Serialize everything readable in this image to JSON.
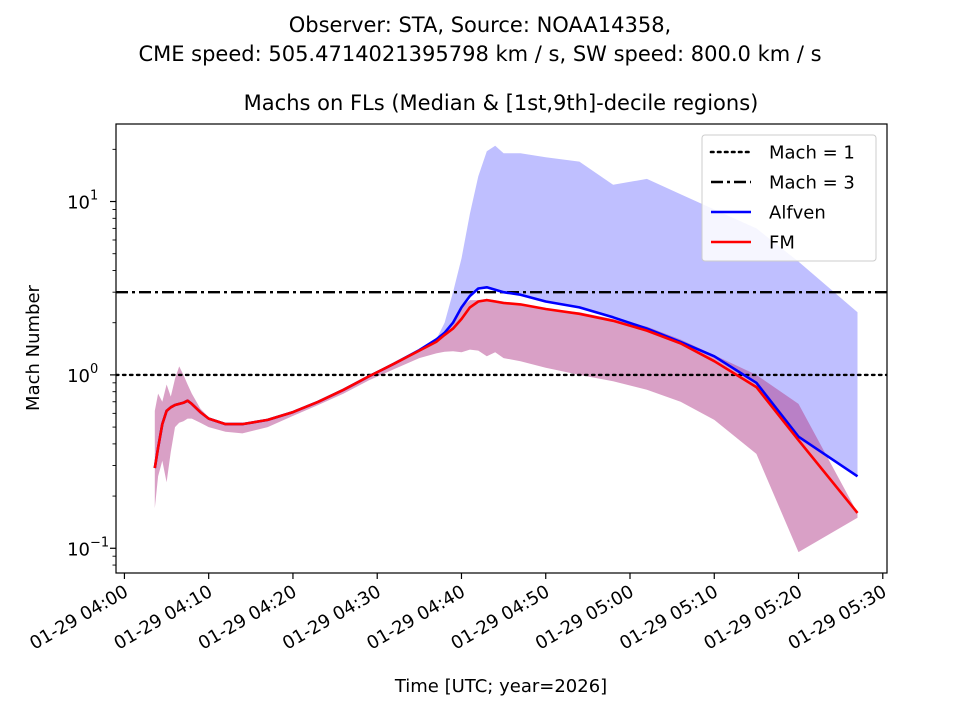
{
  "chart_data": {
    "type": "line",
    "suptitle_line1": "Observer: STA, Source: NOAA14358,",
    "suptitle_line2": "CME speed: 505.4714021395798 km / s, SW speed: 800.0 km / s",
    "title": "Machs on FLs (Median & [1st,9th]-decile regions)",
    "xlabel": "Time [UTC; year=2026]",
    "ylabel": "Mach Number",
    "y_scale": "log",
    "ylim": [
      0.072,
      28
    ],
    "xlim_minutes": [
      -1,
      90.5
    ],
    "x_ticks": [
      {
        "t": 0,
        "label": "01-29 04:00"
      },
      {
        "t": 10,
        "label": "01-29 04:10"
      },
      {
        "t": 20,
        "label": "01-29 04:20"
      },
      {
        "t": 30,
        "label": "01-29 04:30"
      },
      {
        "t": 40,
        "label": "01-29 04:40"
      },
      {
        "t": 50,
        "label": "01-29 04:50"
      },
      {
        "t": 60,
        "label": "01-29 05:00"
      },
      {
        "t": 70,
        "label": "01-29 05:10"
      },
      {
        "t": 80,
        "label": "01-29 05:20"
      },
      {
        "t": 90,
        "label": "01-29 05:30"
      }
    ],
    "y_ticks": [
      {
        "v": 0.1,
        "base": "10",
        "exp": "−1"
      },
      {
        "v": 1,
        "base": "10",
        "exp": "0"
      },
      {
        "v": 10,
        "base": "10",
        "exp": "1"
      }
    ],
    "hlines": [
      {
        "name": "Mach = 1",
        "value": 1,
        "style": "dotted",
        "color": "#000000"
      },
      {
        "name": "Mach = 3",
        "value": 3,
        "style": "dashdot",
        "color": "#000000"
      }
    ],
    "series": [
      {
        "name": "Alfven",
        "color": "#0000ff",
        "fill_color": "#0000ff",
        "x": [
          3.6,
          4.0,
          4.5,
          5.0,
          5.5,
          6.0,
          6.5,
          7.0,
          7.5,
          8.0,
          9.0,
          10.0,
          12.0,
          14.0,
          17.0,
          20.0,
          23.0,
          26.0,
          29.0,
          32.0,
          35.0,
          37.0,
          38.0,
          39.0,
          40.0,
          41.0,
          42.0,
          43.0,
          44.0,
          45.0,
          47.0,
          50.0,
          54.0,
          58.0,
          62.0,
          66.0,
          70.0,
          75.0,
          80.0,
          87.0
        ],
        "median": [
          0.29,
          0.38,
          0.52,
          0.62,
          0.65,
          0.67,
          0.68,
          0.69,
          0.71,
          0.68,
          0.61,
          0.56,
          0.52,
          0.52,
          0.55,
          0.61,
          0.7,
          0.82,
          0.98,
          1.16,
          1.39,
          1.6,
          1.75,
          2.0,
          2.45,
          2.85,
          3.15,
          3.2,
          3.1,
          3.0,
          2.9,
          2.65,
          2.45,
          2.15,
          1.85,
          1.55,
          1.28,
          0.9,
          0.44,
          0.26
        ],
        "low": [
          0.29,
          0.38,
          0.52,
          0.62,
          0.65,
          0.67,
          0.68,
          0.69,
          0.71,
          0.68,
          0.61,
          0.56,
          0.52,
          0.52,
          0.55,
          0.61,
          0.7,
          0.82,
          0.98,
          1.16,
          1.39,
          1.6,
          1.75,
          2.0,
          2.45,
          2.85,
          3.15,
          3.2,
          3.1,
          3.0,
          2.9,
          2.65,
          2.45,
          2.15,
          1.85,
          1.55,
          1.28,
          0.9,
          0.44,
          0.26
        ],
        "high": [
          0.29,
          0.38,
          0.52,
          0.62,
          0.65,
          0.67,
          0.68,
          0.69,
          0.71,
          0.68,
          0.61,
          0.56,
          0.52,
          0.52,
          0.55,
          0.61,
          0.7,
          0.82,
          0.98,
          1.16,
          1.39,
          1.6,
          2.0,
          3.0,
          4.7,
          8.5,
          14.0,
          19.5,
          21.0,
          19.0,
          19.0,
          18.0,
          17.0,
          12.5,
          13.5,
          11.0,
          9.0,
          7.0,
          4.5,
          2.3
        ]
      },
      {
        "name": "FM",
        "color": "#ff0000",
        "fill_color": "#b4418e",
        "x": [
          3.6,
          4.0,
          4.5,
          5.0,
          5.5,
          6.0,
          6.5,
          7.0,
          7.5,
          8.0,
          9.0,
          10.0,
          12.0,
          14.0,
          17.0,
          20.0,
          23.0,
          26.0,
          29.0,
          32.0,
          35.0,
          37.0,
          38.0,
          39.0,
          40.0,
          41.0,
          42.0,
          43.0,
          44.0,
          45.0,
          47.0,
          50.0,
          54.0,
          58.0,
          62.0,
          66.0,
          70.0,
          75.0,
          80.0,
          87.0
        ],
        "median": [
          0.29,
          0.38,
          0.52,
          0.62,
          0.65,
          0.67,
          0.68,
          0.69,
          0.71,
          0.68,
          0.61,
          0.56,
          0.52,
          0.52,
          0.55,
          0.61,
          0.7,
          0.82,
          0.98,
          1.16,
          1.38,
          1.55,
          1.7,
          1.85,
          2.1,
          2.45,
          2.65,
          2.7,
          2.65,
          2.6,
          2.55,
          2.4,
          2.25,
          2.05,
          1.8,
          1.52,
          1.2,
          0.85,
          0.42,
          0.16
        ],
        "low": [
          0.17,
          0.26,
          0.32,
          0.24,
          0.36,
          0.5,
          0.53,
          0.54,
          0.56,
          0.56,
          0.53,
          0.5,
          0.47,
          0.46,
          0.5,
          0.58,
          0.67,
          0.78,
          0.93,
          1.08,
          1.25,
          1.33,
          1.36,
          1.37,
          1.35,
          1.4,
          1.38,
          1.28,
          1.35,
          1.25,
          1.2,
          1.1,
          1.0,
          0.92,
          0.82,
          0.7,
          0.55,
          0.35,
          0.095,
          0.15
        ],
        "high": [
          0.62,
          0.78,
          0.7,
          0.88,
          0.75,
          0.95,
          1.12,
          1.0,
          0.88,
          0.78,
          0.64,
          0.57,
          0.52,
          0.52,
          0.55,
          0.61,
          0.7,
          0.82,
          0.98,
          1.16,
          1.39,
          1.6,
          1.75,
          2.0,
          2.45,
          2.7,
          2.7,
          2.75,
          2.7,
          2.65,
          2.55,
          2.4,
          2.3,
          2.1,
          1.9,
          1.6,
          1.3,
          1.0,
          0.68,
          0.16
        ]
      }
    ],
    "legend": {
      "placement": "top-right",
      "entries": [
        {
          "label": "Mach = 1",
          "kind": "dotted",
          "color": "#000000"
        },
        {
          "label": "Mach = 3",
          "kind": "dashdot",
          "color": "#000000"
        },
        {
          "label": "Alfven",
          "kind": "solid",
          "color": "#0000ff"
        },
        {
          "label": "FM",
          "kind": "solid",
          "color": "#ff0000"
        }
      ]
    }
  }
}
